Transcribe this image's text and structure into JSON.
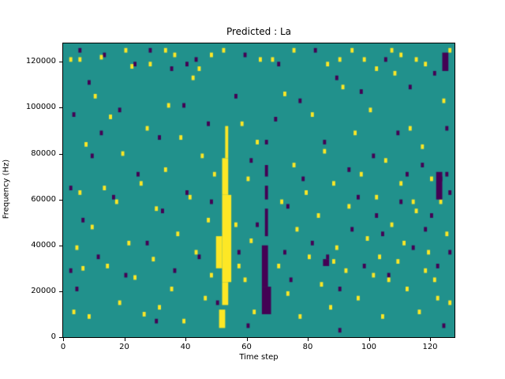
{
  "chart_data": {
    "type": "heatmap",
    "title": "Predicted : La",
    "xlabel": "Time step",
    "ylabel": "Frequency (Hz)",
    "xlim": [
      0,
      128
    ],
    "ylim": [
      0,
      128000
    ],
    "x_ticks": [
      0,
      20,
      40,
      60,
      80,
      100,
      120
    ],
    "y_ticks": [
      0,
      20000,
      40000,
      60000,
      80000,
      100000,
      120000
    ],
    "colormap": "viridis",
    "colors": {
      "background": "#21918c",
      "positive": "#fde725",
      "negative": "#440154"
    },
    "units": {
      "cell_x": "time step",
      "cell_y": "kHz"
    },
    "yellow_cells": [
      [
        3,
        10
      ],
      [
        4,
        38
      ],
      [
        5,
        62
      ],
      [
        6,
        29
      ],
      [
        7,
        83
      ],
      [
        8,
        8
      ],
      [
        9,
        47
      ],
      [
        10,
        104
      ],
      [
        12,
        121
      ],
      [
        13,
        64
      ],
      [
        14,
        30
      ],
      [
        15,
        95
      ],
      [
        17,
        58
      ],
      [
        18,
        14
      ],
      [
        19,
        79
      ],
      [
        21,
        40
      ],
      [
        22,
        117
      ],
      [
        23,
        25
      ],
      [
        25,
        66
      ],
      [
        26,
        9
      ],
      [
        27,
        90
      ],
      [
        29,
        33
      ],
      [
        30,
        55
      ],
      [
        31,
        12
      ],
      [
        33,
        72
      ],
      [
        34,
        100
      ],
      [
        35,
        20
      ],
      [
        37,
        44
      ],
      [
        38,
        86
      ],
      [
        39,
        6
      ],
      [
        41,
        60
      ],
      [
        42,
        112
      ],
      [
        43,
        36
      ],
      [
        45,
        78
      ],
      [
        46,
        16
      ],
      [
        47,
        50
      ],
      [
        48,
        26
      ],
      [
        49,
        70
      ],
      [
        56,
        48
      ],
      [
        57,
        30
      ],
      [
        58,
        92
      ],
      [
        59,
        24
      ],
      [
        60,
        68
      ],
      [
        61,
        41
      ],
      [
        62,
        10
      ],
      [
        63,
        84
      ],
      [
        64,
        120
      ],
      [
        70,
        30
      ],
      [
        71,
        58
      ],
      [
        72,
        105
      ],
      [
        73,
        18
      ],
      [
        75,
        74
      ],
      [
        76,
        46
      ],
      [
        77,
        8
      ],
      [
        79,
        62
      ],
      [
        80,
        34
      ],
      [
        81,
        96
      ],
      [
        83,
        52
      ],
      [
        84,
        22
      ],
      [
        85,
        80
      ],
      [
        87,
        12
      ],
      [
        88,
        32
      ],
      [
        88,
        66
      ],
      [
        89,
        38
      ],
      [
        91,
        108
      ],
      [
        92,
        28
      ],
      [
        93,
        56
      ],
      [
        95,
        88
      ],
      [
        96,
        16
      ],
      [
        97,
        70
      ],
      [
        99,
        42
      ],
      [
        100,
        98
      ],
      [
        101,
        26
      ],
      [
        102,
        60
      ],
      [
        103,
        34
      ],
      [
        104,
        8
      ],
      [
        105,
        76
      ],
      [
        106,
        24
      ],
      [
        107,
        48
      ],
      [
        108,
        114
      ],
      [
        109,
        32
      ],
      [
        110,
        66
      ],
      [
        111,
        40
      ],
      [
        112,
        20
      ],
      [
        113,
        90
      ],
      [
        114,
        58
      ],
      [
        115,
        54
      ],
      [
        116,
        10
      ],
      [
        117,
        82
      ],
      [
        118,
        28
      ],
      [
        119,
        36
      ],
      [
        120,
        68
      ],
      [
        121,
        24
      ],
      [
        122,
        16
      ],
      [
        123,
        58
      ],
      [
        124,
        102
      ],
      [
        125,
        44
      ],
      [
        126,
        14
      ],
      [
        2,
        120
      ],
      [
        20,
        124
      ],
      [
        28,
        118
      ],
      [
        36,
        122
      ],
      [
        44,
        116
      ],
      [
        52,
        124
      ],
      [
        68,
        120
      ],
      [
        86,
        118
      ],
      [
        94,
        124
      ],
      [
        102,
        116
      ],
      [
        110,
        122
      ],
      [
        118,
        118
      ],
      [
        126,
        124
      ],
      [
        5,
        120
      ],
      [
        33,
        124
      ],
      [
        48,
        122
      ],
      [
        75,
        124
      ],
      [
        90,
        120
      ],
      [
        98,
        120
      ],
      [
        107,
        124
      ],
      [
        115,
        120
      ]
    ],
    "purple_cells": [
      [
        2,
        64
      ],
      [
        2,
        28
      ],
      [
        3,
        96
      ],
      [
        4,
        20
      ],
      [
        5,
        124
      ],
      [
        6,
        50
      ],
      [
        8,
        110
      ],
      [
        9,
        78
      ],
      [
        11,
        34
      ],
      [
        13,
        122
      ],
      [
        16,
        60
      ],
      [
        18,
        98
      ],
      [
        20,
        26
      ],
      [
        23,
        118
      ],
      [
        24,
        70
      ],
      [
        27,
        40
      ],
      [
        28,
        124
      ],
      [
        31,
        86
      ],
      [
        32,
        54
      ],
      [
        35,
        116
      ],
      [
        36,
        28
      ],
      [
        39,
        100
      ],
      [
        40,
        62
      ],
      [
        43,
        120
      ],
      [
        44,
        34
      ],
      [
        47,
        92
      ],
      [
        48,
        58
      ],
      [
        50,
        14
      ],
      [
        56,
        104
      ],
      [
        57,
        36
      ],
      [
        59,
        122
      ],
      [
        61,
        76
      ],
      [
        63,
        48
      ],
      [
        69,
        94
      ],
      [
        70,
        118
      ],
      [
        73,
        56
      ],
      [
        74,
        24
      ],
      [
        77,
        102
      ],
      [
        78,
        68
      ],
      [
        81,
        40
      ],
      [
        82,
        124
      ],
      [
        85,
        84
      ],
      [
        86,
        34
      ],
      [
        89,
        112
      ],
      [
        90,
        20
      ],
      [
        93,
        72
      ],
      [
        94,
        46
      ],
      [
        97,
        106
      ],
      [
        98,
        30
      ],
      [
        101,
        78
      ],
      [
        102,
        52
      ],
      [
        105,
        120
      ],
      [
        106,
        26
      ],
      [
        109,
        88
      ],
      [
        110,
        58
      ],
      [
        113,
        108
      ],
      [
        114,
        38
      ],
      [
        117,
        74
      ],
      [
        118,
        46
      ],
      [
        121,
        114
      ],
      [
        122,
        30
      ],
      [
        125,
        90
      ],
      [
        126,
        62
      ],
      [
        124,
        4
      ],
      [
        60,
        4
      ],
      [
        30,
        6
      ],
      [
        90,
        2
      ],
      [
        12,
        88
      ],
      [
        40,
        118
      ],
      [
        66,
        84
      ],
      [
        72,
        36
      ],
      [
        96,
        60
      ],
      [
        104,
        44
      ],
      [
        112,
        70
      ],
      [
        120,
        52
      ],
      [
        126,
        36
      ],
      [
        123,
        68
      ],
      [
        125,
        70
      ]
    ],
    "yellow_bands": [
      {
        "x0": 50,
        "x1": 52,
        "y0": 30,
        "y1": 44
      },
      {
        "x0": 52,
        "x1": 55,
        "y0": 24,
        "y1": 62
      },
      {
        "x0": 52,
        "x1": 54,
        "y0": 62,
        "y1": 78
      },
      {
        "x0": 53,
        "x1": 54,
        "y0": 78,
        "y1": 92
      },
      {
        "x0": 52,
        "x1": 54,
        "y0": 14,
        "y1": 24
      },
      {
        "x0": 51,
        "x1": 53,
        "y0": 4,
        "y1": 12
      }
    ],
    "purple_bands": [
      {
        "x0": 65,
        "x1": 68,
        "y0": 10,
        "y1": 22
      },
      {
        "x0": 65,
        "x1": 67,
        "y0": 22,
        "y1": 40
      },
      {
        "x0": 66,
        "x1": 67,
        "y0": 44,
        "y1": 56
      },
      {
        "x0": 66,
        "x1": 67,
        "y0": 60,
        "y1": 66
      },
      {
        "x0": 66,
        "x1": 67,
        "y0": 70,
        "y1": 75
      },
      {
        "x0": 85,
        "x1": 87,
        "y0": 31,
        "y1": 34
      },
      {
        "x0": 122,
        "x1": 124,
        "y0": 60,
        "y1": 72
      },
      {
        "x0": 124,
        "x1": 126,
        "y0": 116,
        "y1": 124
      }
    ]
  }
}
